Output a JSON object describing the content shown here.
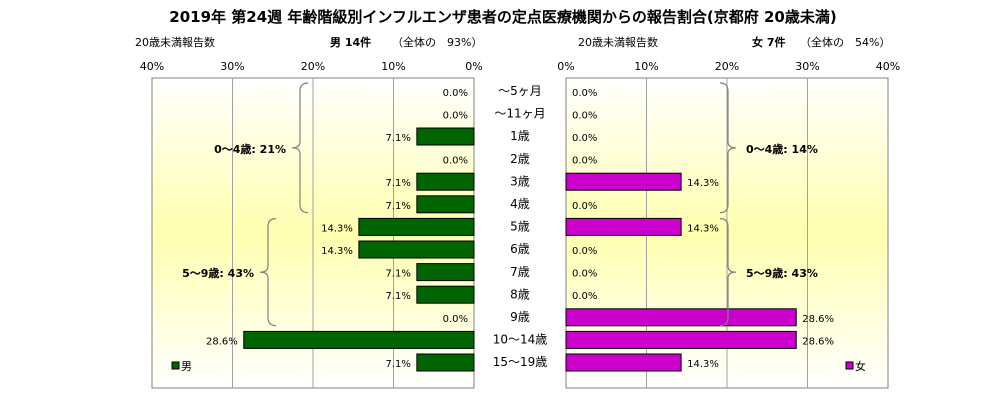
{
  "chart_data": {
    "type": "bar",
    "title": "2019年 第24週 年齢階級別インフルエンザ患者の定点医療機関からの報告割合(京都府 20歳未満)",
    "categories": [
      "～5ヶ月",
      "～11ヶ月",
      "1歳",
      "2歳",
      "3歳",
      "4歳",
      "5歳",
      "6歳",
      "7歳",
      "8歳",
      "9歳",
      "10～14歳",
      "15～19歳"
    ],
    "xlim": [
      0,
      40
    ],
    "xticks": [
      "0%",
      "10%",
      "20%",
      "30%",
      "40%"
    ],
    "series": [
      {
        "name": "男",
        "color": "#006400",
        "values": [
          0.0,
          0.0,
          7.1,
          0.0,
          7.1,
          7.1,
          14.3,
          14.3,
          7.1,
          7.1,
          0.0,
          28.6,
          7.1
        ],
        "labels": [
          "0.0%",
          "0.0%",
          "7.1%",
          "0.0%",
          "7.1%",
          "7.1%",
          "14.3%",
          "14.3%",
          "7.1%",
          "7.1%",
          "0.0%",
          "28.6%",
          "7.1%"
        ]
      },
      {
        "name": "女",
        "color": "#cc00cc",
        "values": [
          0.0,
          0.0,
          0.0,
          0.0,
          14.3,
          0.0,
          14.3,
          0.0,
          0.0,
          0.0,
          28.6,
          28.6,
          14.3
        ],
        "labels": [
          "0.0%",
          "0.0%",
          "0.0%",
          "0.0%",
          "14.3%",
          "0.0%",
          "14.3%",
          "0.0%",
          "0.0%",
          "0.0%",
          "28.6%",
          "28.6%",
          "14.3%"
        ]
      }
    ],
    "left_panel": {
      "subtitle_left": "20歳未満報告数",
      "subtitle_bold": "男 14件",
      "subtitle_right": "（全体の　93%）",
      "groups": [
        {
          "label": "0～4歳: 21%",
          "from": 0,
          "to": 5
        },
        {
          "label": "5～9歳: 43%",
          "from": 6,
          "to": 10
        }
      ],
      "legend": "男"
    },
    "right_panel": {
      "subtitle_left": "20歳未満報告数",
      "subtitle_bold": "女 7件",
      "subtitle_right": "（全体の　54%）",
      "groups": [
        {
          "label": "0～4歳: 14%",
          "from": 0,
          "to": 5
        },
        {
          "label": "5～9歳: 43%",
          "from": 6,
          "to": 10
        }
      ],
      "legend": "女"
    },
    "grid": true,
    "legend_position": "bottom"
  }
}
